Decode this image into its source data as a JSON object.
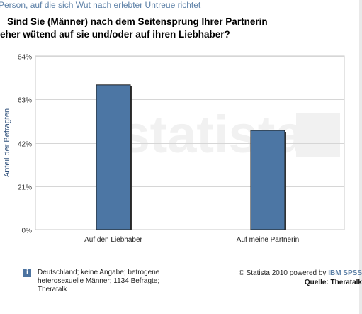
{
  "header": {
    "caption": "Person, auf die sich Wut nach erlebter Untreue richtet",
    "title_line1": "Sind Sie (Männer) nach dem Seitensprung Ihrer Partnerin",
    "title_line2": "eher wütend auf sie und/oder auf ihren Liebhaber?"
  },
  "chart_data": {
    "type": "bar",
    "categories": [
      "Auf den Liebhaber",
      "Auf meine Partnerin"
    ],
    "values": [
      70,
      48
    ],
    "ylabel": "Anteil der Befragten",
    "ylim": [
      0,
      84
    ],
    "yticks": [
      0,
      21,
      42,
      63,
      84
    ],
    "ytick_labels": [
      "0%",
      "21%",
      "42%",
      "63%",
      "84%"
    ],
    "bar_color": "#4c76a4",
    "grid": true,
    "watermark": "statista"
  },
  "footer": {
    "info_icon": "i",
    "note": "Deutschland; keine Angabe; betrogene heterosexuelle Männer; 1134 Befragte; Theratalk",
    "copyright": "© Statista 2010 powered by ",
    "ibm": "IBM SPSS",
    "source": "Quelle: Theratalk"
  }
}
